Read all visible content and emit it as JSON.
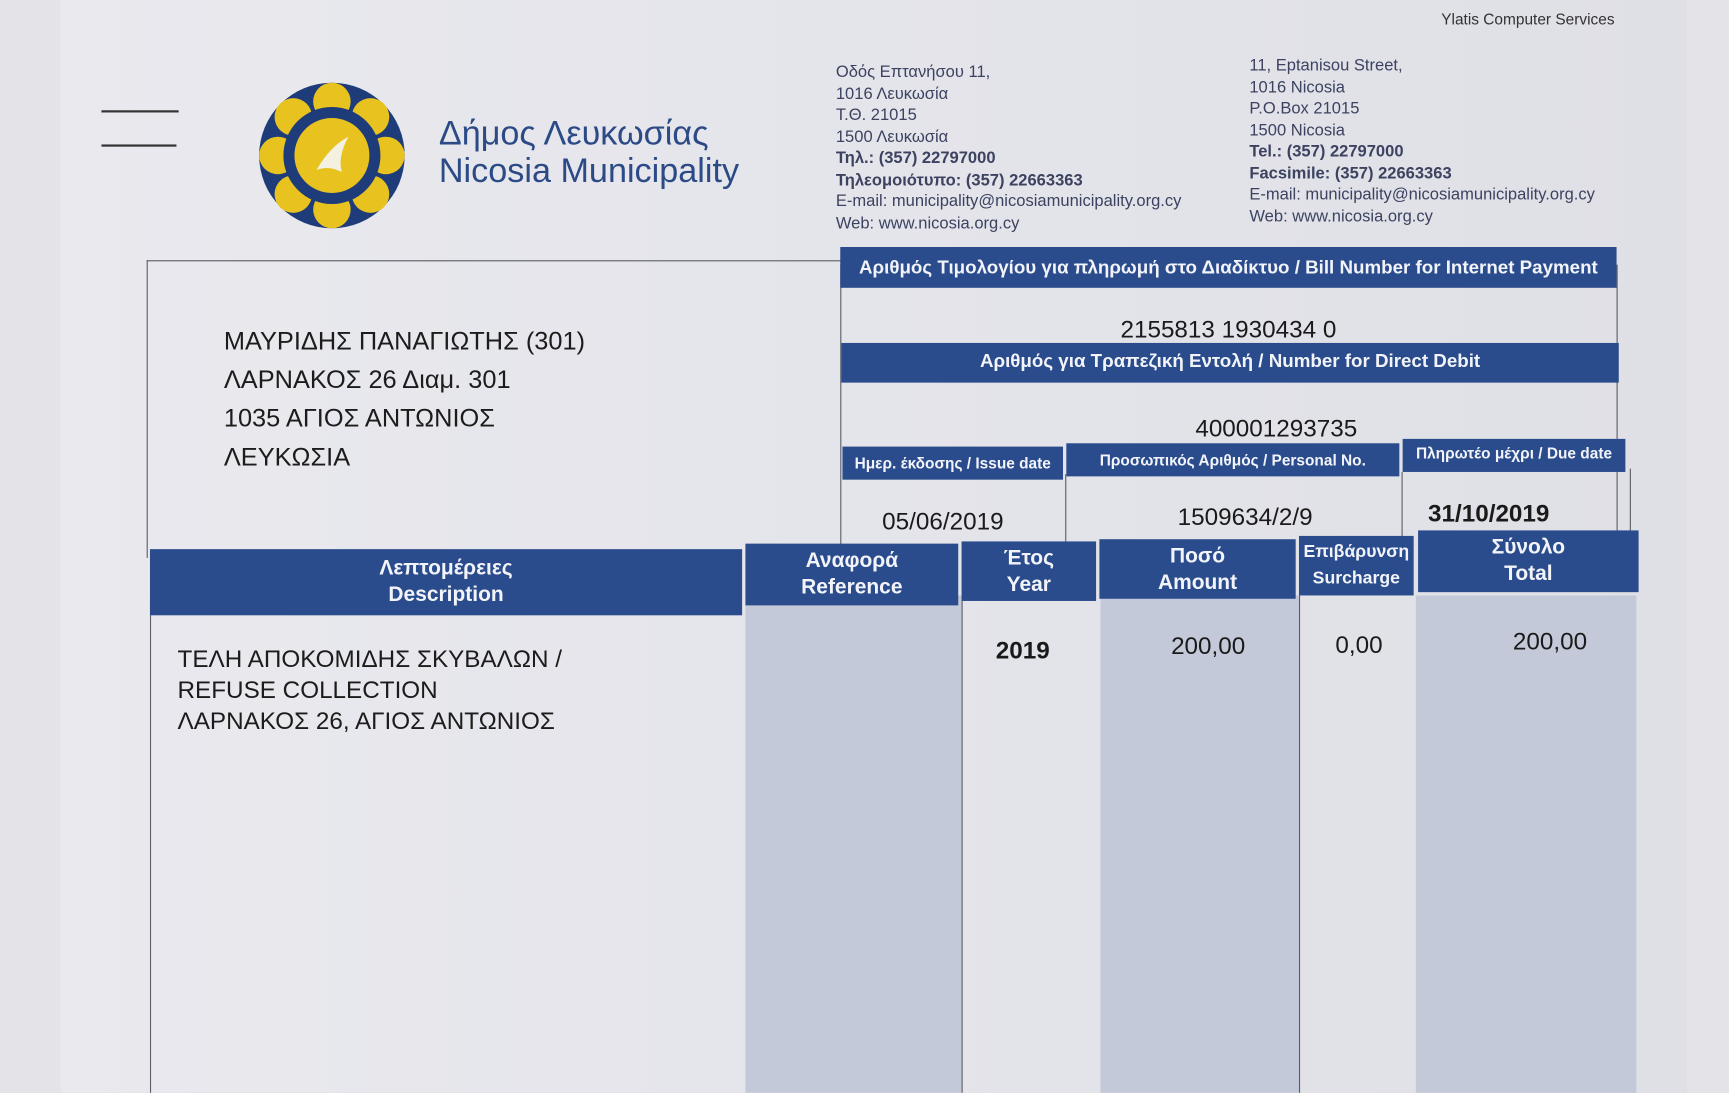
{
  "vendor": "Ylatis Computer Services",
  "org": {
    "name_el": "Δήμος Λευκωσίας",
    "name_en": "Nicosia Municipality",
    "colors": {
      "blue": "#2b4c8c",
      "yellow": "#e8c21e"
    }
  },
  "address_el": [
    "Οδός Επτανήσου 11,",
    "1016 Λευκωσία",
    "Τ.Θ. 21015",
    "1500 Λευκωσία",
    "Τηλ.: (357) 22797000",
    "Τηλεομοιότυπο: (357) 22663363",
    "E-mail: municipality@nicosiamunicipality.org.cy",
    "Web: www.nicosia.org.cy"
  ],
  "address_en": [
    "11, Eptanisou Street,",
    "1016 Nicosia",
    "P.O.Box 21015",
    "1500 Nicosia",
    "Tel.: (357) 22797000",
    "Facsimile: (357) 22663363",
    "E-mail: municipality@nicosiamunicipality.org.cy",
    "Web: www.nicosia.org.cy"
  ],
  "recipient": [
    "ΜΑΥΡΙΔΗΣ ΠΑΝΑΓΙΩΤΗΣ (301)",
    "ΛΑΡΝΑΚΟΣ 26 Διαμ. 301",
    "1035 ΑΓΙΟΣ ΑΝΤΩΝΙΟΣ",
    "ΛΕΥΚΩΣΙΑ"
  ],
  "bill_number": {
    "label": "Αριθμός Τιμολογίου για πληρωμή στο Διαδίκτυο / Bill Number for Internet Payment",
    "value": "2155813 1930434 0"
  },
  "direct_debit": {
    "label": "Αριθμός για Τραπεζική Εντολή / Number for Direct Debit",
    "value": "400001293735"
  },
  "issue_date": {
    "label": "Ημερ. έκδοσης / Issue date",
    "value": "05/06/2019"
  },
  "personal_no": {
    "label": "Προσωπικός Αριθμός / Personal No.",
    "value": "1509634/2/9"
  },
  "due_date": {
    "label": "Πληρωτέο μέχρι / Due date",
    "value": "31/10/2019"
  },
  "table": {
    "headers": [
      [
        "Λεπτομέρειες",
        "Description"
      ],
      [
        "Αναφορά",
        "Reference"
      ],
      [
        "Έτος",
        "Year"
      ],
      [
        "Ποσό",
        "Amount"
      ],
      [
        "Επιβάρυνση",
        "Surcharge"
      ],
      [
        "Σύνολο",
        "Total"
      ]
    ],
    "rows": [
      {
        "description": [
          "ΤΕΛΗ ΑΠΟΚΟΜΙΔΗΣ ΣΚΥΒΑΛΩΝ /",
          "REFUSE COLLECTION",
          "ΛΑΡΝΑΚΟΣ 26, ΑΓΙΟΣ ΑΝΤΩΝΙΟΣ"
        ],
        "reference": "",
        "year": "2019",
        "amount": "200,00",
        "surcharge": "0,00",
        "total": "200,00"
      }
    ]
  }
}
